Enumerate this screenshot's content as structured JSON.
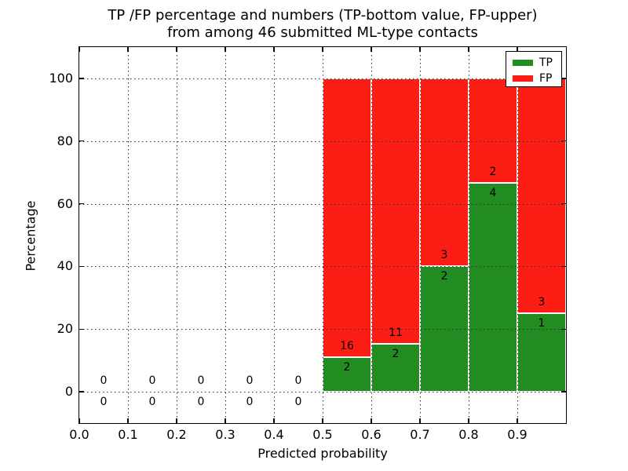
{
  "figure": {
    "background": "#ffffff",
    "text_color": "#000000"
  },
  "chart_data": {
    "type": "bar",
    "stacked": true,
    "title_line1": "TP /FP percentage and numbers (TP-bottom value, FP-upper)",
    "title_line2": "from among 46 submitted ML-type contacts",
    "xlabel": "Predicted probability",
    "ylabel": "Percentage",
    "xlim": [
      0.0,
      1.0
    ],
    "ylim": [
      -10,
      110
    ],
    "x_ticks": [
      0.0,
      0.1,
      0.2,
      0.3,
      0.4,
      0.5,
      0.6,
      0.7,
      0.8,
      0.9
    ],
    "x_tick_labels": [
      "0.0",
      "0.1",
      "0.2",
      "0.3",
      "0.4",
      "0.5",
      "0.6",
      "0.7",
      "0.8",
      "0.9"
    ],
    "y_ticks": [
      0,
      20,
      40,
      60,
      80,
      100
    ],
    "y_tick_labels": [
      "0",
      "20",
      "40",
      "60",
      "80",
      "100"
    ],
    "grid": true,
    "grid_style": "dotted",
    "legend_position": "upper right",
    "legend": [
      {
        "label": "TP",
        "color": "#228B22"
      },
      {
        "label": "FP",
        "color": "#FC1D14"
      }
    ],
    "bar_edge_color": "#ffffff",
    "bins": [
      {
        "range": [
          0.0,
          0.1
        ],
        "tp_count": 0,
        "fp_count": 0,
        "tp_pct": 0,
        "fp_pct": 0
      },
      {
        "range": [
          0.1,
          0.2
        ],
        "tp_count": 0,
        "fp_count": 0,
        "tp_pct": 0,
        "fp_pct": 0
      },
      {
        "range": [
          0.2,
          0.3
        ],
        "tp_count": 0,
        "fp_count": 0,
        "tp_pct": 0,
        "fp_pct": 0
      },
      {
        "range": [
          0.3,
          0.4
        ],
        "tp_count": 0,
        "fp_count": 0,
        "tp_pct": 0,
        "fp_pct": 0
      },
      {
        "range": [
          0.4,
          0.5
        ],
        "tp_count": 0,
        "fp_count": 0,
        "tp_pct": 0,
        "fp_pct": 0
      },
      {
        "range": [
          0.5,
          0.6
        ],
        "tp_count": 2,
        "fp_count": 16,
        "tp_pct": 11.1,
        "fp_pct": 88.9
      },
      {
        "range": [
          0.6,
          0.7
        ],
        "tp_count": 2,
        "fp_count": 11,
        "tp_pct": 15.4,
        "fp_pct": 84.6
      },
      {
        "range": [
          0.7,
          0.8
        ],
        "tp_count": 2,
        "fp_count": 3,
        "tp_pct": 40.0,
        "fp_pct": 60.0
      },
      {
        "range": [
          0.8,
          0.9
        ],
        "tp_count": 4,
        "fp_count": 2,
        "tp_pct": 66.7,
        "fp_pct": 33.3
      },
      {
        "range": [
          0.9,
          1.0
        ],
        "tp_count": 1,
        "fp_count": 3,
        "tp_pct": 25.0,
        "fp_pct": 75.0
      }
    ]
  }
}
